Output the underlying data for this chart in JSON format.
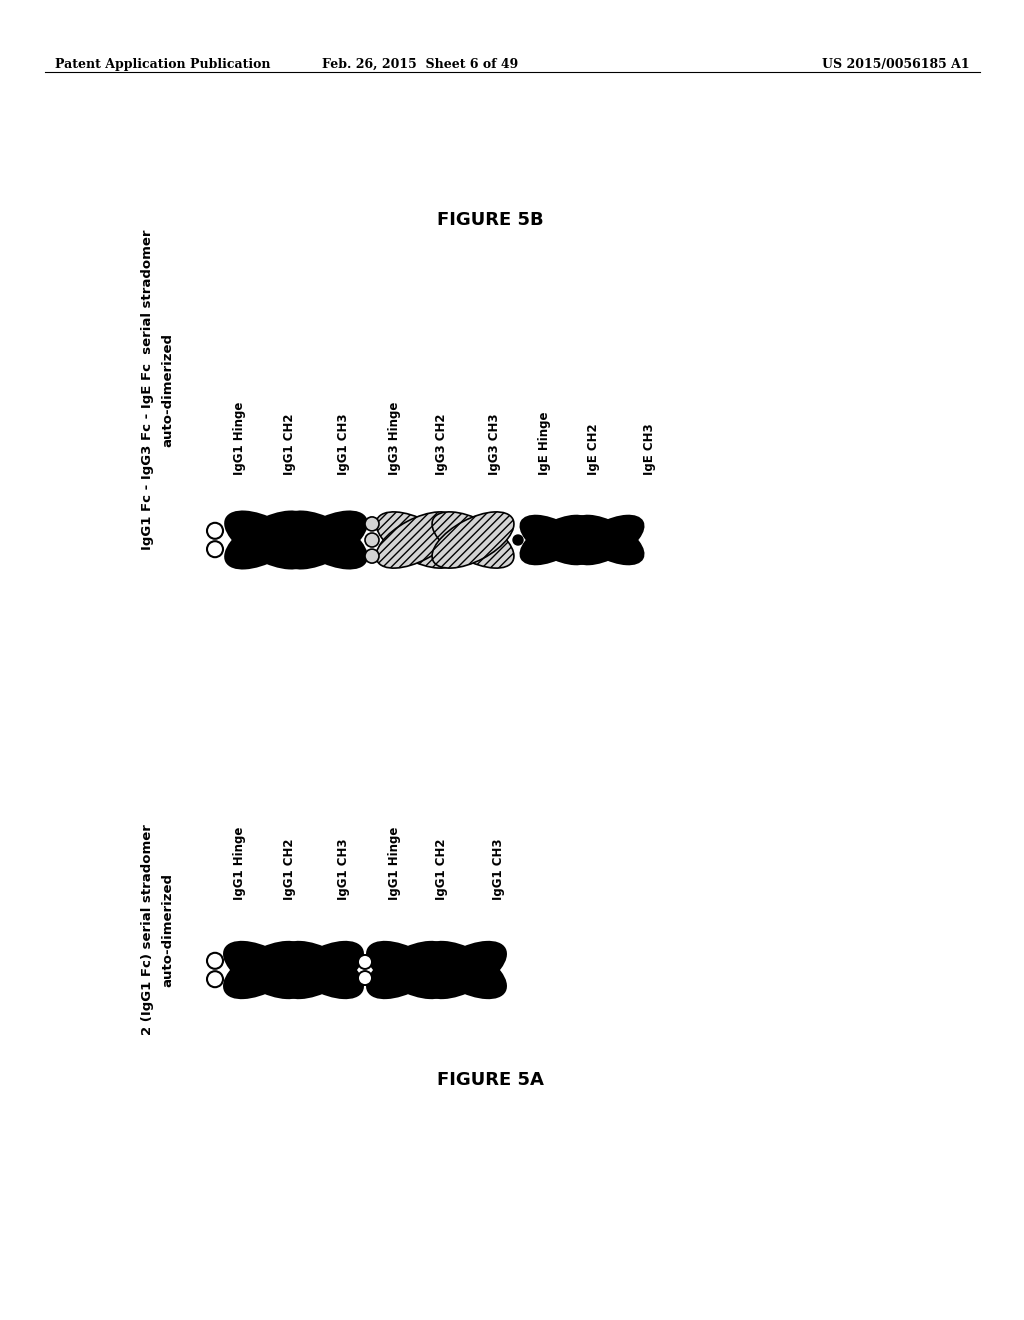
{
  "header_left": "Patent Application Publication",
  "header_mid": "Feb. 26, 2015  Sheet 6 of 49",
  "header_right": "US 2015/0056185 A1",
  "fig5b_title": "FIGURE 5B",
  "fig5b_label_line1": "IgG1 Fc - IgG3 Fc - IgE Fc  serial stradomer",
  "fig5b_label_line2": "auto-dimerized",
  "fig5b_domain_labels": [
    "IgG1 Hinge",
    "IgG1 CH2",
    "IgG1 CH3",
    "IgG3 Hinge",
    "IgG3 CH2",
    "IgG3 CH3",
    "IgE Hinge",
    "IgE CH2",
    "IgE CH3"
  ],
  "fig5a_title": "FIGURE 5A",
  "fig5a_label_line1": "2 (IgG1 Fc) serial stradomer",
  "fig5a_label_line2": "auto-dimerized",
  "fig5a_domain_labels": [
    "IgG1 Hinge",
    "IgG1 CH2",
    "IgG1 CH3",
    "IgG1 Hinge",
    "IgG1 CH2",
    "IgG1 CH3"
  ],
  "background_color": "#ffffff",
  "text_color": "#000000"
}
